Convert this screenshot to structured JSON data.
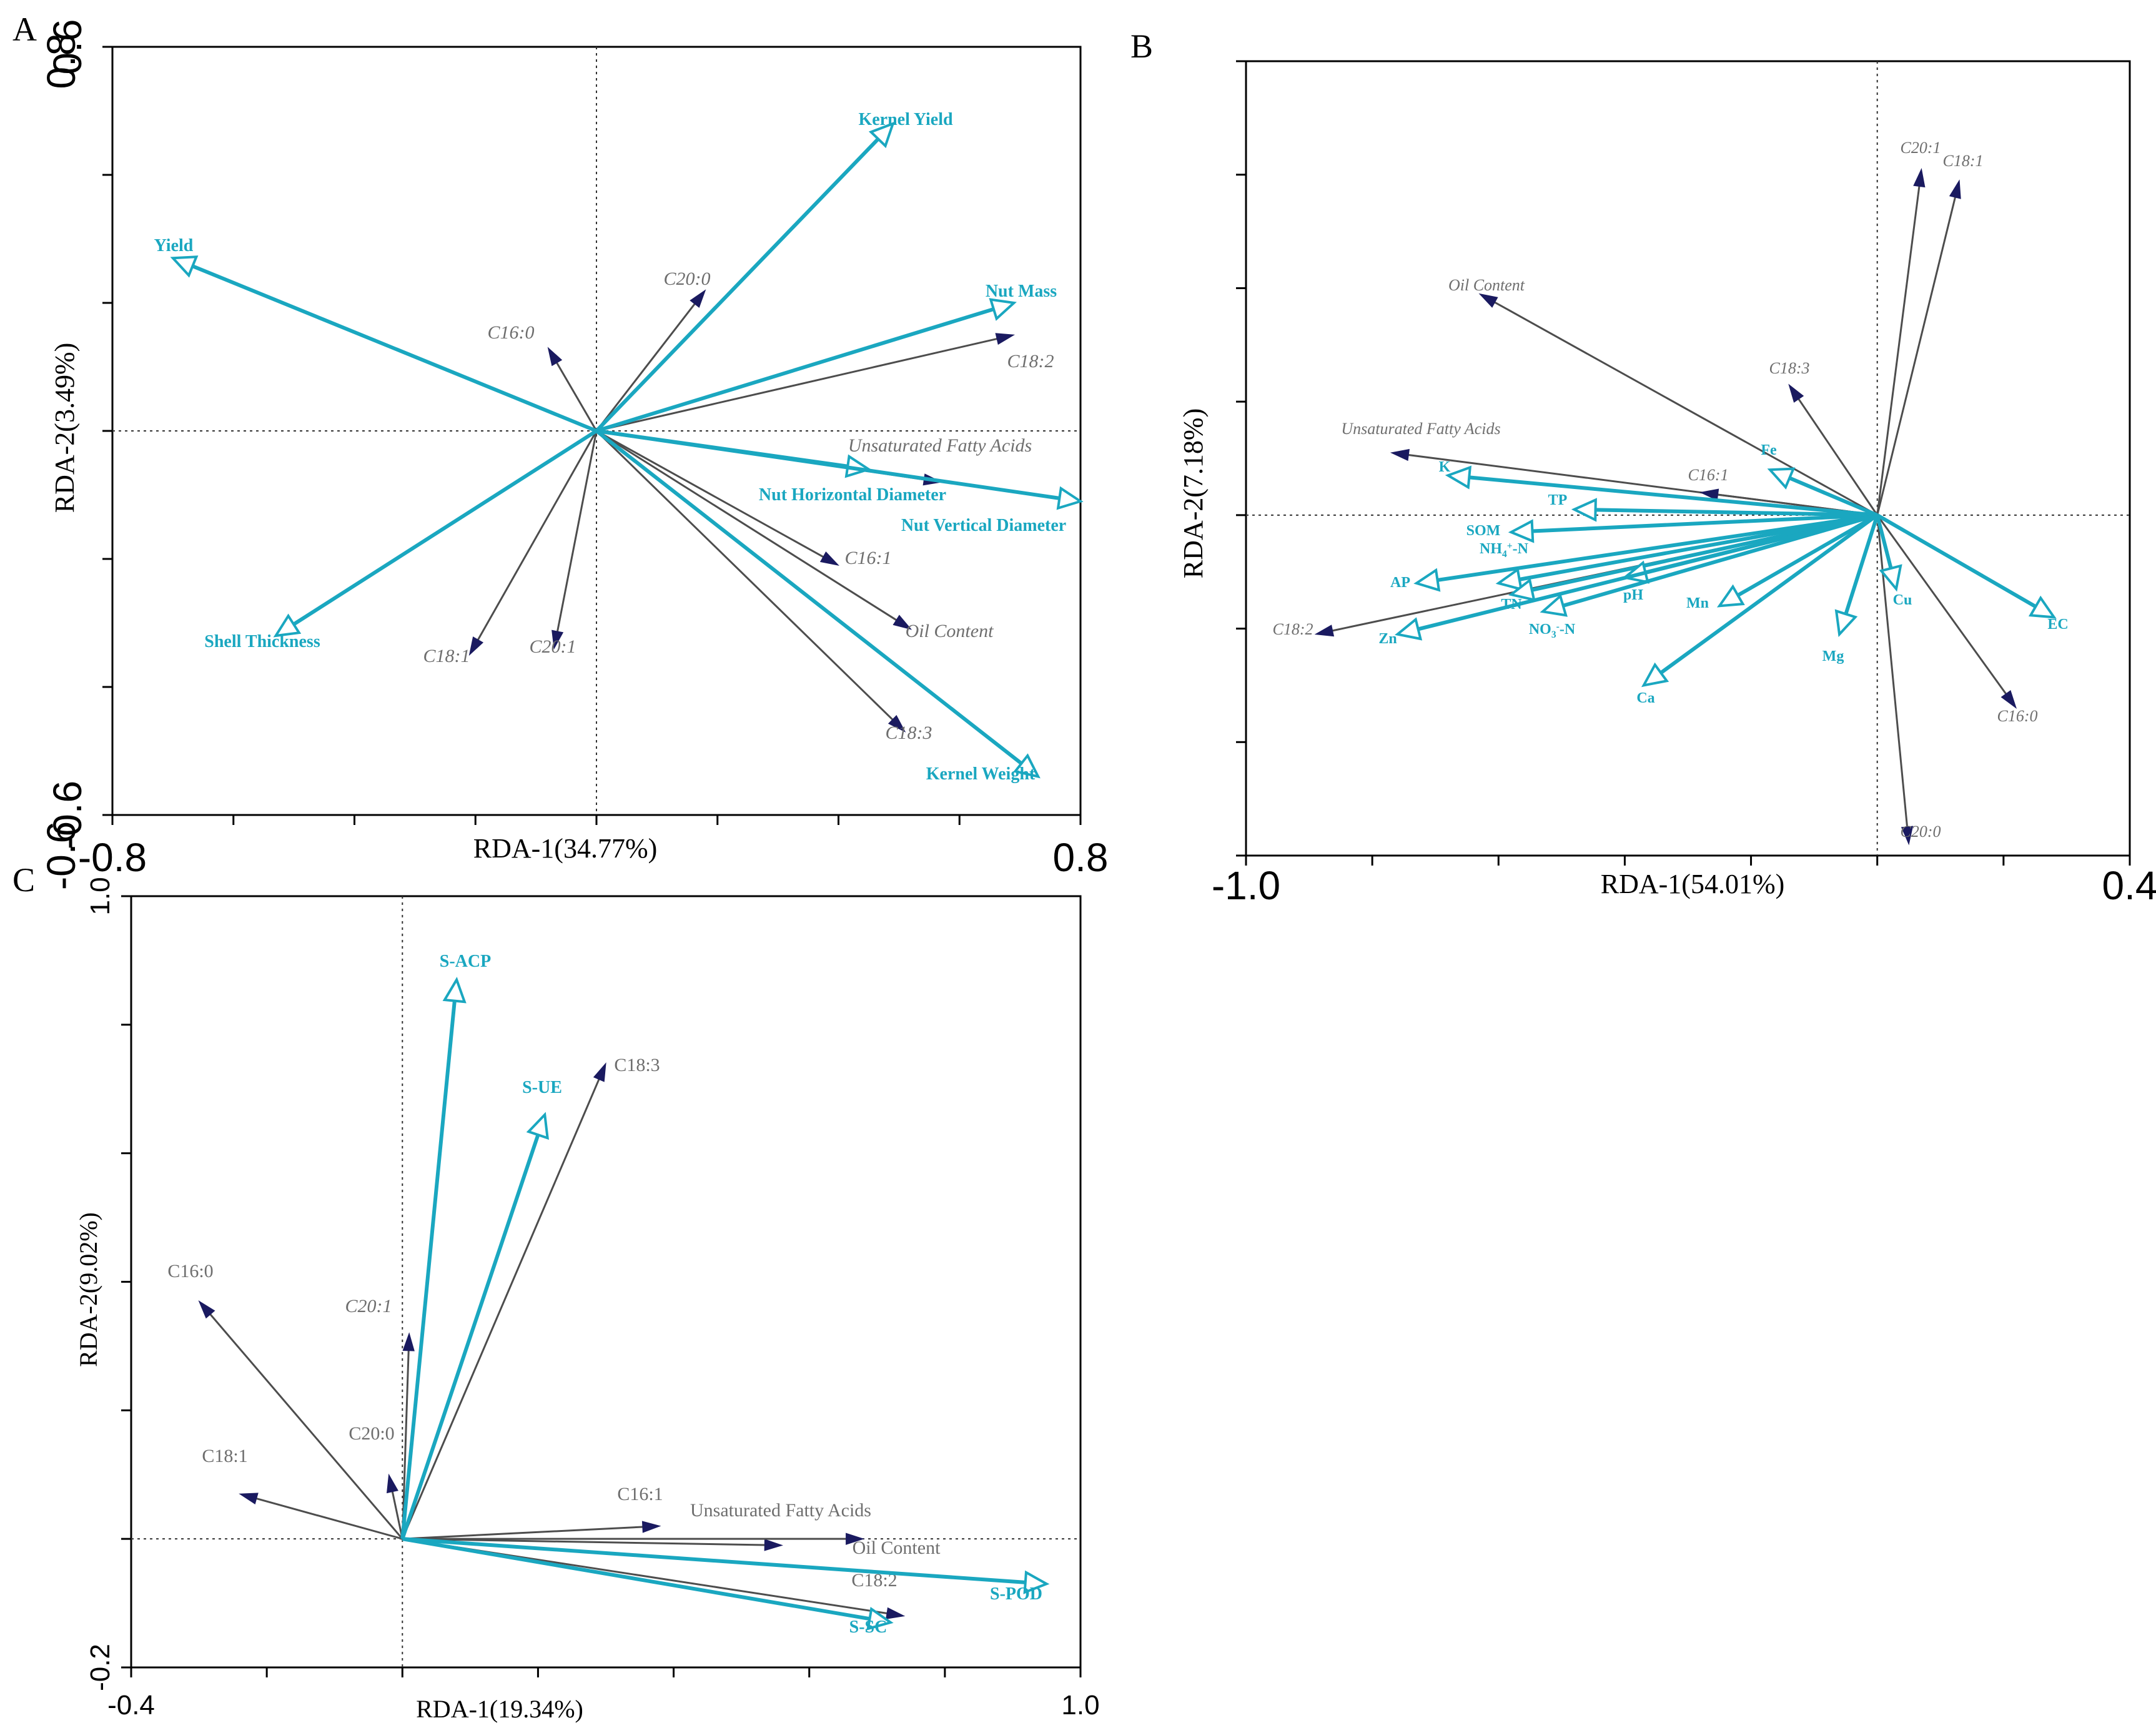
{
  "colors": {
    "response": "#4d4d4d",
    "response_head": "#1a1a60",
    "explanatory": "#1aa7c0"
  },
  "chart_data": [
    {
      "panel": "A",
      "type": "scatter",
      "subtype": "rda-biplot",
      "xlabel": "RDA-1(34.77%)",
      "ylabel": "RDA-2(3.49%)",
      "xlim": [
        -0.8,
        0.8
      ],
      "ylim": [
        -0.6,
        0.6
      ],
      "xtick_labels": [
        "-0.8",
        "0.8"
      ],
      "ytick_labels": [
        "0.6",
        "-0.6"
      ],
      "minor_ticks_x": [
        -0.8,
        -0.6,
        -0.4,
        -0.2,
        0,
        0.2,
        0.4,
        0.6,
        0.8
      ],
      "minor_ticks_y": [
        -0.6,
        -0.4,
        -0.2,
        0,
        0.2,
        0.4,
        0.6
      ],
      "explanatory": [
        {
          "name": "Kernel Yield",
          "x": 0.49,
          "y": 0.48
        },
        {
          "name": "Yield",
          "x": -0.7,
          "y": 0.27
        },
        {
          "name": "Nut Mass",
          "x": 0.69,
          "y": 0.2
        },
        {
          "name": "Nut Horizontal Diameter",
          "x": 0.45,
          "y": -0.06
        },
        {
          "name": "Nut Vertical Diameter",
          "x": 0.8,
          "y": -0.11
        },
        {
          "name": "Shell Thickness",
          "x": -0.53,
          "y": -0.32
        },
        {
          "name": "Kernel Weight",
          "x": 0.73,
          "y": -0.54
        }
      ],
      "response": [
        {
          "name": "C20:0",
          "x": 0.18,
          "y": 0.22,
          "italic": true
        },
        {
          "name": "C16:0",
          "x": -0.08,
          "y": 0.13,
          "italic": true
        },
        {
          "name": "C18:2",
          "x": 0.69,
          "y": 0.15,
          "italic": true
        },
        {
          "name": "Unsaturated Fatty Acids",
          "x": 0.57,
          "y": -0.08,
          "italic": true
        },
        {
          "name": "C16:1",
          "x": 0.4,
          "y": -0.21,
          "italic": true
        },
        {
          "name": "Oil Content",
          "x": 0.52,
          "y": -0.31,
          "italic": true
        },
        {
          "name": "C18:3",
          "x": 0.51,
          "y": -0.47,
          "italic": true
        },
        {
          "name": "C18:1",
          "x": -0.21,
          "y": -0.35,
          "italic": true
        },
        {
          "name": "C20:1",
          "x": -0.07,
          "y": -0.34,
          "italic": true
        }
      ]
    },
    {
      "panel": "B",
      "type": "scatter",
      "subtype": "rda-biplot",
      "xlabel": "RDA-1(54.01%)",
      "ylabel": "RDA-2(7.18%)",
      "xlim": [
        -1.0,
        0.4
      ],
      "ylim": [
        -0.6,
        0.8
      ],
      "xtick_labels": [
        "-1.0",
        "0.4"
      ],
      "ytick_labels": [
        "0.8",
        "-0.6"
      ],
      "minor_ticks_x": [
        -1.0,
        -0.8,
        -0.6,
        -0.4,
        -0.2,
        0,
        0.2,
        0.4
      ],
      "minor_ticks_y": [
        -0.6,
        -0.4,
        -0.2,
        0,
        0.2,
        0.4,
        0.6,
        0.8
      ],
      "explanatory": [
        {
          "name": "K",
          "x": -0.68,
          "y": 0.07
        },
        {
          "name": "TP",
          "x": -0.48,
          "y": 0.01
        },
        {
          "name": "SOM",
          "x": -0.58,
          "y": -0.03
        },
        {
          "name": "NH4+-N",
          "x": -0.6,
          "y": -0.12
        },
        {
          "name": "AP",
          "x": -0.73,
          "y": -0.12
        },
        {
          "name": "TN",
          "x": -0.58,
          "y": -0.14
        },
        {
          "name": "pH",
          "x": -0.4,
          "y": -0.11
        },
        {
          "name": "NO3--N",
          "x": -0.53,
          "y": -0.17
        },
        {
          "name": "Zn",
          "x": -0.76,
          "y": -0.21
        },
        {
          "name": "Mn",
          "x": -0.25,
          "y": -0.16
        },
        {
          "name": "Ca",
          "x": -0.37,
          "y": -0.3
        },
        {
          "name": "Mg",
          "x": -0.06,
          "y": -0.21
        },
        {
          "name": "Cu",
          "x": 0.03,
          "y": -0.13
        },
        {
          "name": "Fe",
          "x": -0.17,
          "y": 0.08
        },
        {
          "name": "EC",
          "x": 0.28,
          "y": -0.18
        }
      ],
      "response": [
        {
          "name": "C20:1",
          "x": 0.07,
          "y": 0.61
        },
        {
          "name": "C18:1",
          "x": 0.13,
          "y": 0.59
        },
        {
          "name": "Oil Content",
          "x": -0.63,
          "y": 0.39
        },
        {
          "name": "C18:3",
          "x": -0.14,
          "y": 0.23
        },
        {
          "name": "Unsaturated Fatty Acids",
          "x": -0.77,
          "y": 0.11
        },
        {
          "name": "C16:1",
          "x": -0.28,
          "y": 0.04
        },
        {
          "name": "C18:2",
          "x": -0.89,
          "y": -0.21
        },
        {
          "name": "C16:0",
          "x": 0.22,
          "y": -0.34
        },
        {
          "name": "C20:0",
          "x": 0.05,
          "y": -0.58
        }
      ]
    },
    {
      "panel": "C",
      "type": "scatter",
      "subtype": "rda-biplot",
      "xlabel": "RDA-1(19.34%)",
      "ylabel": "RDA-2(9.02%)",
      "xlim": [
        -0.4,
        1.0
      ],
      "ylim": [
        -0.2,
        1.0
      ],
      "xtick_labels": [
        "-0.4",
        "1.0"
      ],
      "ytick_labels": [
        "1.0",
        "-0.2"
      ],
      "minor_ticks_x": [
        -0.4,
        -0.2,
        0,
        0.2,
        0.4,
        0.6,
        0.8,
        1.0
      ],
      "minor_ticks_y": [
        -0.2,
        0,
        0.2,
        0.4,
        0.6,
        0.8,
        1.0
      ],
      "explanatory": [
        {
          "name": "S-ACP",
          "x": 0.08,
          "y": 0.87
        },
        {
          "name": "S-UE",
          "x": 0.21,
          "y": 0.66
        },
        {
          "name": "S-POD",
          "x": 0.95,
          "y": -0.07
        },
        {
          "name": "S-SC",
          "x": 0.72,
          "y": -0.13
        }
      ],
      "response": [
        {
          "name": "C18:3",
          "x": 0.3,
          "y": 0.74,
          "italic": false
        },
        {
          "name": "C16:0",
          "x": -0.3,
          "y": 0.37,
          "italic": false
        },
        {
          "name": "C20:1",
          "x": 0.01,
          "y": 0.32,
          "italic": true
        },
        {
          "name": "C20:0",
          "x": -0.02,
          "y": 0.1,
          "italic": false
        },
        {
          "name": "C18:1",
          "x": -0.24,
          "y": 0.07,
          "italic": false
        },
        {
          "name": "C16:1",
          "x": 0.38,
          "y": 0.02,
          "italic": false
        },
        {
          "name": "Unsaturated Fatty Acids",
          "x": 0.56,
          "y": -0.01,
          "italic": false
        },
        {
          "name": "Oil Content",
          "x": 0.68,
          "y": 0.0,
          "italic": false
        },
        {
          "name": "C18:2",
          "x": 0.74,
          "y": -0.12,
          "italic": false
        }
      ]
    }
  ]
}
